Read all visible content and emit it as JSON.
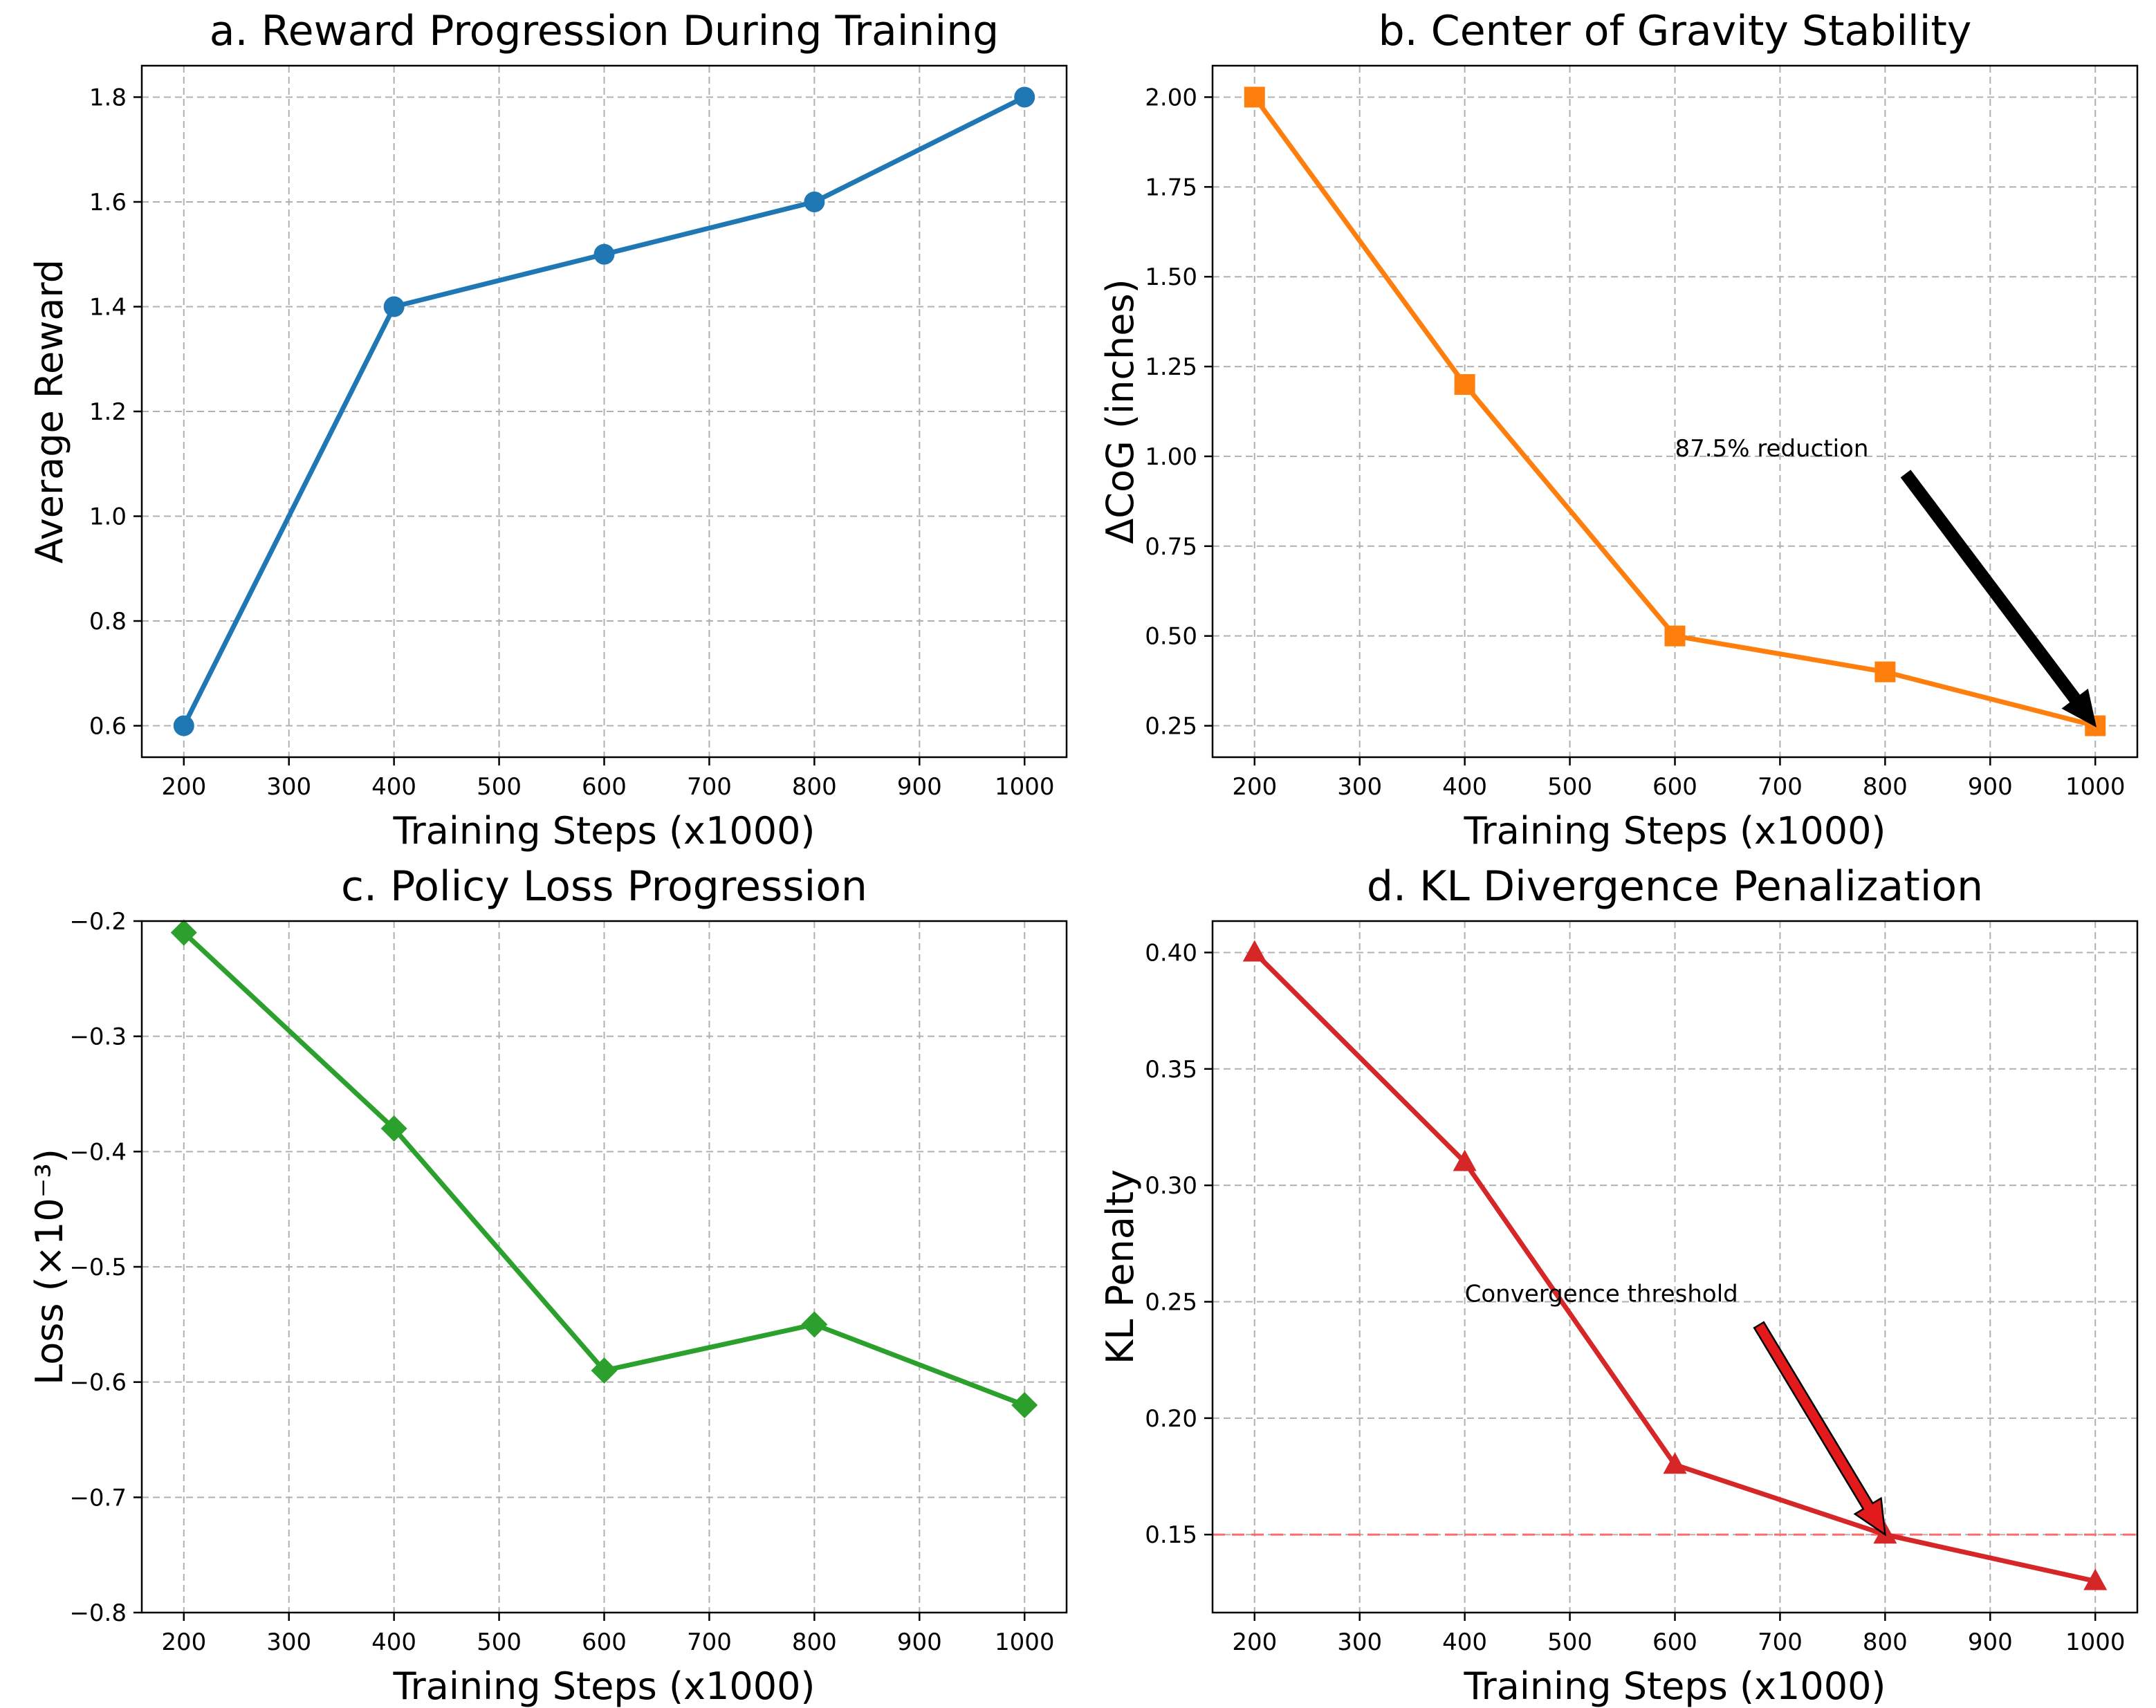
{
  "chart_data": [
    {
      "type": "line",
      "title": "a. Reward Progression During Training",
      "xlabel": "Training Steps (x1000)",
      "ylabel": "Average Reward",
      "x": [
        200,
        400,
        600,
        800,
        1000
      ],
      "values": [
        0.6,
        1.4,
        1.5,
        1.6,
        1.8
      ],
      "color": "#1f77b4",
      "marker": "circle",
      "xlim": [
        160,
        1040
      ],
      "ylim": [
        0.54,
        1.86
      ],
      "xticks": [
        200,
        300,
        400,
        500,
        600,
        700,
        800,
        900,
        1000
      ],
      "xtick_labels": [
        "200",
        "300",
        "400",
        "500",
        "600",
        "700",
        "800",
        "900",
        "1000"
      ],
      "yticks": [
        0.6,
        0.8,
        1.0,
        1.2,
        1.4,
        1.6,
        1.8
      ],
      "ytick_labels": [
        "0.6",
        "0.8",
        "1.0",
        "1.2",
        "1.4",
        "1.6",
        "1.8"
      ],
      "grid": true
    },
    {
      "type": "line",
      "title": "b. Center of Gravity Stability",
      "xlabel": "Training Steps (x1000)",
      "ylabel": "ΔCoG (inches)",
      "x": [
        200,
        400,
        600,
        800,
        1000
      ],
      "values": [
        2.0,
        1.2,
        0.5,
        0.4,
        0.25
      ],
      "color": "#ff7f0e",
      "marker": "square",
      "xlim": [
        160,
        1040
      ],
      "ylim": [
        0.1625,
        2.0875
      ],
      "xticks": [
        200,
        300,
        400,
        500,
        600,
        700,
        800,
        900,
        1000
      ],
      "xtick_labels": [
        "200",
        "300",
        "400",
        "500",
        "600",
        "700",
        "800",
        "900",
        "1000"
      ],
      "yticks": [
        0.25,
        0.5,
        0.75,
        1.0,
        1.25,
        1.5,
        1.75,
        2.0
      ],
      "ytick_labels": [
        "0.25",
        "0.50",
        "0.75",
        "1.00",
        "1.25",
        "1.50",
        "1.75",
        "2.00"
      ],
      "grid": true,
      "annotation": {
        "text": "87.5% reduction",
        "text_x": 600,
        "text_y": 1.0,
        "arrow_from_x": 820,
        "arrow_from_y": 0.95,
        "arrow_to_x": 1000,
        "arrow_to_y": 0.25,
        "arrow_color": "#000000"
      }
    },
    {
      "type": "line",
      "title": "c. Policy Loss Progression",
      "xlabel": "Training Steps (x1000)",
      "ylabel": "Loss (×10⁻³)",
      "x": [
        200,
        400,
        600,
        800,
        1000
      ],
      "values": [
        -0.21,
        -0.38,
        -0.59,
        -0.55,
        -0.62
      ],
      "color": "#2ca02c",
      "marker": "diamond",
      "xlim": [
        160,
        1040
      ],
      "ylim": [
        -0.8,
        -0.2
      ],
      "xticks": [
        200,
        300,
        400,
        500,
        600,
        700,
        800,
        900,
        1000
      ],
      "xtick_labels": [
        "200",
        "300",
        "400",
        "500",
        "600",
        "700",
        "800",
        "900",
        "1000"
      ],
      "yticks": [
        -0.8,
        -0.7,
        -0.6,
        -0.5,
        -0.4,
        -0.3,
        -0.2
      ],
      "ytick_labels": [
        "−0.8",
        "−0.7",
        "−0.6",
        "−0.5",
        "−0.4",
        "−0.3",
        "−0.2"
      ],
      "grid": true
    },
    {
      "type": "line",
      "title": "d. KL Divergence Penalization",
      "xlabel": "Training Steps (x1000)",
      "ylabel": "KL Penalty",
      "x": [
        200,
        400,
        600,
        800,
        1000
      ],
      "values": [
        0.4,
        0.31,
        0.18,
        0.15,
        0.13
      ],
      "color": "#d62728",
      "marker": "triangle",
      "xlim": [
        160,
        1040
      ],
      "ylim": [
        0.1165,
        0.4135
      ],
      "xticks": [
        200,
        300,
        400,
        500,
        600,
        700,
        800,
        900,
        1000
      ],
      "xtick_labels": [
        "200",
        "300",
        "400",
        "500",
        "600",
        "700",
        "800",
        "900",
        "1000"
      ],
      "yticks": [
        0.15,
        0.2,
        0.25,
        0.3,
        0.35,
        0.4
      ],
      "ytick_labels": [
        "0.15",
        "0.20",
        "0.25",
        "0.30",
        "0.35",
        "0.40"
      ],
      "grid": true,
      "hline": {
        "y": 0.15,
        "color": "#ff6b6b",
        "style": "dashed"
      },
      "annotation": {
        "text": "Convergence threshold",
        "text_x": 400,
        "text_y": 0.25,
        "arrow_from_x": 680,
        "arrow_from_y": 0.24,
        "arrow_to_x": 800,
        "arrow_to_y": 0.15,
        "arrow_color": "#e31a1c"
      }
    }
  ]
}
